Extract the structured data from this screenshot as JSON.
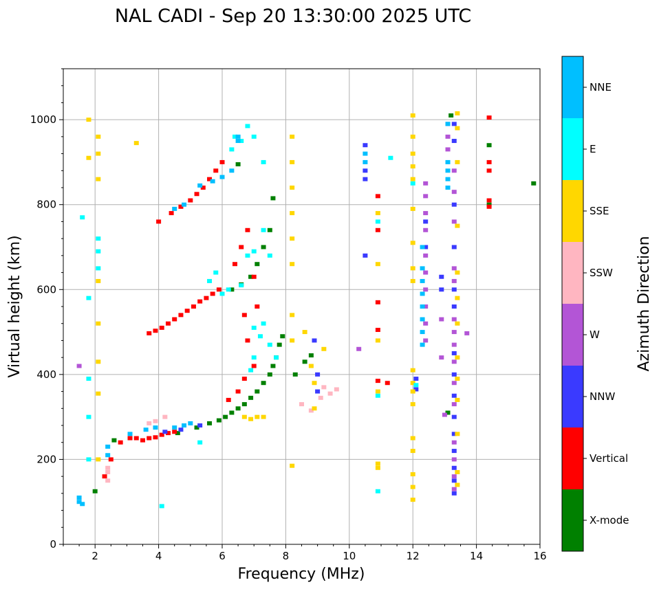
{
  "chart_data": {
    "type": "scatter",
    "title": "NAL CADI - Sep 20 13:30:00 2025 UTC",
    "xlabel": "Frequency (MHz)",
    "ylabel": "Virtual height (km)",
    "xlim": [
      1,
      16
    ],
    "ylim": [
      0,
      1120
    ],
    "xticks": [
      2,
      4,
      6,
      8,
      10,
      12,
      14,
      16
    ],
    "yticks": [
      0,
      200,
      400,
      600,
      800,
      1000
    ],
    "grid": true,
    "colorbar": {
      "title": "Azimuth Direction",
      "categories": [
        {
          "label": "X-mode",
          "color": "#008000"
        },
        {
          "label": "Vertical",
          "color": "#ff0000"
        },
        {
          "label": "NNW",
          "color": "#3a3aff"
        },
        {
          "label": "W",
          "color": "#b355d6"
        },
        {
          "label": "SSW",
          "color": "#ffb6c1"
        },
        {
          "label": "SSE",
          "color": "#ffd700"
        },
        {
          "label": "E",
          "color": "#00ffff"
        },
        {
          "label": "NNE",
          "color": "#00bfff"
        }
      ]
    },
    "series": [
      {
        "name": "X-mode",
        "points": [
          [
            2.0,
            125
          ],
          [
            2.6,
            245
          ],
          [
            4.6,
            262
          ],
          [
            5.2,
            275
          ],
          [
            5.6,
            285
          ],
          [
            5.9,
            292
          ],
          [
            6.1,
            300
          ],
          [
            6.3,
            310
          ],
          [
            6.5,
            320
          ],
          [
            6.7,
            330
          ],
          [
            6.9,
            345
          ],
          [
            7.1,
            360
          ],
          [
            7.3,
            380
          ],
          [
            7.5,
            400
          ],
          [
            7.6,
            420
          ],
          [
            7.7,
            440
          ],
          [
            7.8,
            470
          ],
          [
            7.9,
            490
          ],
          [
            6.3,
            600
          ],
          [
            6.6,
            612
          ],
          [
            6.9,
            630
          ],
          [
            7.1,
            660
          ],
          [
            7.3,
            700
          ],
          [
            7.5,
            740
          ],
          [
            6.5,
            895
          ],
          [
            7.6,
            815
          ],
          [
            8.3,
            400
          ],
          [
            8.6,
            430
          ],
          [
            8.8,
            445
          ],
          [
            13.1,
            310
          ],
          [
            13.2,
            1010
          ],
          [
            14.4,
            940
          ],
          [
            14.4,
            800
          ],
          [
            15.8,
            850
          ]
        ]
      },
      {
        "name": "Vertical",
        "points": [
          [
            2.3,
            160
          ],
          [
            2.5,
            200
          ],
          [
            2.8,
            240
          ],
          [
            3.1,
            250
          ],
          [
            3.3,
            250
          ],
          [
            3.5,
            245
          ],
          [
            3.7,
            250
          ],
          [
            3.9,
            252
          ],
          [
            4.1,
            258
          ],
          [
            4.3,
            262
          ],
          [
            4.5,
            265
          ],
          [
            3.7,
            497
          ],
          [
            3.9,
            503
          ],
          [
            4.1,
            510
          ],
          [
            4.3,
            520
          ],
          [
            4.5,
            530
          ],
          [
            4.7,
            540
          ],
          [
            4.9,
            550
          ],
          [
            5.1,
            560
          ],
          [
            5.3,
            572
          ],
          [
            5.5,
            580
          ],
          [
            5.7,
            590
          ],
          [
            5.9,
            600
          ],
          [
            4.0,
            760
          ],
          [
            4.4,
            780
          ],
          [
            4.7,
            795
          ],
          [
            5.0,
            810
          ],
          [
            5.2,
            825
          ],
          [
            5.4,
            840
          ],
          [
            5.6,
            860
          ],
          [
            5.8,
            880
          ],
          [
            6.0,
            900
          ],
          [
            6.4,
            660
          ],
          [
            6.6,
            700
          ],
          [
            6.8,
            740
          ],
          [
            7.0,
            630
          ],
          [
            7.1,
            560
          ],
          [
            6.7,
            540
          ],
          [
            6.8,
            480
          ],
          [
            7.0,
            420
          ],
          [
            6.7,
            390
          ],
          [
            6.5,
            360
          ],
          [
            6.2,
            340
          ],
          [
            10.9,
            820
          ],
          [
            10.9,
            740
          ],
          [
            10.9,
            570
          ],
          [
            10.9,
            505
          ],
          [
            10.9,
            385
          ],
          [
            11.2,
            380
          ],
          [
            14.4,
            1005
          ],
          [
            14.4,
            900
          ],
          [
            14.4,
            880
          ],
          [
            14.4,
            810
          ],
          [
            14.4,
            795
          ]
        ]
      },
      {
        "name": "NNW",
        "points": [
          [
            4.2,
            265
          ],
          [
            4.7,
            270
          ],
          [
            5.3,
            280
          ],
          [
            8.9,
            480
          ],
          [
            9.0,
            400
          ],
          [
            9.0,
            360
          ],
          [
            10.5,
            880
          ],
          [
            10.5,
            860
          ],
          [
            10.5,
            940
          ],
          [
            10.5,
            680
          ],
          [
            12.1,
            390
          ],
          [
            12.1,
            365
          ],
          [
            12.4,
            760
          ],
          [
            12.4,
            700
          ],
          [
            13.3,
            990
          ],
          [
            13.3,
            950
          ],
          [
            13.3,
            800
          ],
          [
            13.3,
            700
          ],
          [
            13.3,
            600
          ],
          [
            13.3,
            560
          ],
          [
            13.3,
            450
          ],
          [
            13.3,
            400
          ],
          [
            13.3,
            350
          ],
          [
            13.3,
            300
          ],
          [
            13.3,
            260
          ],
          [
            13.3,
            220
          ],
          [
            13.3,
            180
          ],
          [
            13.3,
            150
          ],
          [
            13.3,
            120
          ],
          [
            12.9,
            630
          ],
          [
            12.9,
            600
          ]
        ]
      },
      {
        "name": "W",
        "points": [
          [
            1.5,
            420
          ],
          [
            12.4,
            850
          ],
          [
            12.4,
            820
          ],
          [
            12.4,
            780
          ],
          [
            12.4,
            740
          ],
          [
            12.4,
            680
          ],
          [
            12.4,
            640
          ],
          [
            12.4,
            600
          ],
          [
            12.4,
            560
          ],
          [
            12.4,
            520
          ],
          [
            12.4,
            480
          ],
          [
            13.1,
            990
          ],
          [
            13.1,
            960
          ],
          [
            13.1,
            930
          ],
          [
            13.3,
            880
          ],
          [
            13.3,
            830
          ],
          [
            13.3,
            760
          ],
          [
            13.3,
            650
          ],
          [
            13.3,
            620
          ],
          [
            13.3,
            530
          ],
          [
            13.3,
            500
          ],
          [
            13.3,
            470
          ],
          [
            13.3,
            430
          ],
          [
            13.3,
            380
          ],
          [
            13.3,
            330
          ],
          [
            13.3,
            240
          ],
          [
            13.3,
            200
          ],
          [
            13.3,
            160
          ],
          [
            13.3,
            130
          ],
          [
            12.9,
            530
          ],
          [
            12.9,
            440
          ],
          [
            13.0,
            305
          ],
          [
            13.7,
            497
          ],
          [
            10.3,
            460
          ]
        ]
      },
      {
        "name": "SSW",
        "points": [
          [
            2.4,
            170
          ],
          [
            2.4,
            180
          ],
          [
            2.4,
            150
          ],
          [
            3.7,
            285
          ],
          [
            3.9,
            290
          ],
          [
            4.2,
            300
          ],
          [
            8.5,
            330
          ],
          [
            8.8,
            315
          ],
          [
            9.1,
            345
          ],
          [
            9.4,
            355
          ],
          [
            9.6,
            365
          ],
          [
            9.2,
            370
          ]
        ]
      },
      {
        "name": "SSE",
        "points": [
          [
            1.8,
            1000
          ],
          [
            2.1,
            960
          ],
          [
            2.1,
            920
          ],
          [
            1.8,
            910
          ],
          [
            2.1,
            860
          ],
          [
            2.1,
            620
          ],
          [
            2.1,
            520
          ],
          [
            2.1,
            430
          ],
          [
            2.1,
            355
          ],
          [
            2.1,
            200
          ],
          [
            3.3,
            945
          ],
          [
            6.7,
            300
          ],
          [
            6.9,
            295
          ],
          [
            7.1,
            300
          ],
          [
            7.3,
            300
          ],
          [
            8.2,
            960
          ],
          [
            8.2,
            900
          ],
          [
            8.2,
            840
          ],
          [
            8.2,
            780
          ],
          [
            8.2,
            720
          ],
          [
            8.2,
            660
          ],
          [
            8.2,
            540
          ],
          [
            8.2,
            480
          ],
          [
            8.2,
            185
          ],
          [
            8.6,
            500
          ],
          [
            8.8,
            420
          ],
          [
            8.9,
            380
          ],
          [
            8.9,
            320
          ],
          [
            9.2,
            460
          ],
          [
            10.9,
            780
          ],
          [
            10.9,
            660
          ],
          [
            10.9,
            480
          ],
          [
            10.9,
            360
          ],
          [
            10.9,
            190
          ],
          [
            10.9,
            180
          ],
          [
            12.0,
            1010
          ],
          [
            12.0,
            960
          ],
          [
            12.0,
            920
          ],
          [
            12.0,
            890
          ],
          [
            12.0,
            860
          ],
          [
            12.0,
            790
          ],
          [
            12.0,
            710
          ],
          [
            12.0,
            650
          ],
          [
            12.0,
            620
          ],
          [
            12.0,
            410
          ],
          [
            12.0,
            380
          ],
          [
            12.0,
            360
          ],
          [
            12.0,
            330
          ],
          [
            12.0,
            250
          ],
          [
            12.0,
            220
          ],
          [
            12.0,
            165
          ],
          [
            12.0,
            135
          ],
          [
            12.0,
            105
          ],
          [
            13.4,
            1015
          ],
          [
            13.4,
            980
          ],
          [
            13.4,
            900
          ],
          [
            13.4,
            750
          ],
          [
            13.4,
            640
          ],
          [
            13.4,
            580
          ],
          [
            13.4,
            520
          ],
          [
            13.4,
            440
          ],
          [
            13.4,
            390
          ],
          [
            13.4,
            340
          ],
          [
            13.4,
            260
          ],
          [
            13.4,
            170
          ],
          [
            13.4,
            140
          ]
        ]
      },
      {
        "name": "E",
        "points": [
          [
            1.6,
            770
          ],
          [
            2.1,
            720
          ],
          [
            2.1,
            690
          ],
          [
            2.1,
            650
          ],
          [
            1.8,
            580
          ],
          [
            1.8,
            390
          ],
          [
            1.8,
            300
          ],
          [
            1.8,
            200
          ],
          [
            4.1,
            90
          ],
          [
            5.3,
            240
          ],
          [
            5.6,
            620
          ],
          [
            5.8,
            640
          ],
          [
            6.0,
            590
          ],
          [
            6.2,
            600
          ],
          [
            6.6,
            610
          ],
          [
            6.8,
            680
          ],
          [
            7.0,
            690
          ],
          [
            7.3,
            740
          ],
          [
            7.5,
            680
          ],
          [
            7.0,
            510
          ],
          [
            7.2,
            490
          ],
          [
            7.5,
            470
          ],
          [
            7.7,
            440
          ],
          [
            7.3,
            520
          ],
          [
            7.0,
            440
          ],
          [
            6.9,
            410
          ],
          [
            6.3,
            930
          ],
          [
            6.4,
            960
          ],
          [
            6.6,
            950
          ],
          [
            6.8,
            985
          ],
          [
            7.0,
            960
          ],
          [
            7.3,
            900
          ],
          [
            10.9,
            350
          ],
          [
            10.9,
            760
          ],
          [
            10.9,
            125
          ],
          [
            12.0,
            850
          ],
          [
            11.3,
            910
          ],
          [
            12.1,
            375
          ]
        ]
      },
      {
        "name": "NNE",
        "points": [
          [
            1.5,
            110
          ],
          [
            1.5,
            100
          ],
          [
            1.6,
            95
          ],
          [
            2.4,
            210
          ],
          [
            2.4,
            230
          ],
          [
            3.1,
            260
          ],
          [
            3.6,
            270
          ],
          [
            3.9,
            275
          ],
          [
            4.5,
            275
          ],
          [
            4.8,
            280
          ],
          [
            5.0,
            285
          ],
          [
            4.8,
            800
          ],
          [
            4.5,
            790
          ],
          [
            5.3,
            845
          ],
          [
            5.7,
            855
          ],
          [
            6.0,
            865
          ],
          [
            6.3,
            880
          ],
          [
            6.5,
            960
          ],
          [
            6.5,
            950
          ],
          [
            12.3,
            700
          ],
          [
            12.3,
            650
          ],
          [
            12.3,
            620
          ],
          [
            12.3,
            590
          ],
          [
            12.3,
            560
          ],
          [
            12.3,
            530
          ],
          [
            12.3,
            500
          ],
          [
            12.3,
            470
          ],
          [
            13.1,
            880
          ],
          [
            13.1,
            860
          ],
          [
            13.1,
            840
          ],
          [
            13.1,
            900
          ],
          [
            13.1,
            990
          ],
          [
            10.5,
            900
          ],
          [
            10.5,
            920
          ]
        ]
      }
    ]
  }
}
